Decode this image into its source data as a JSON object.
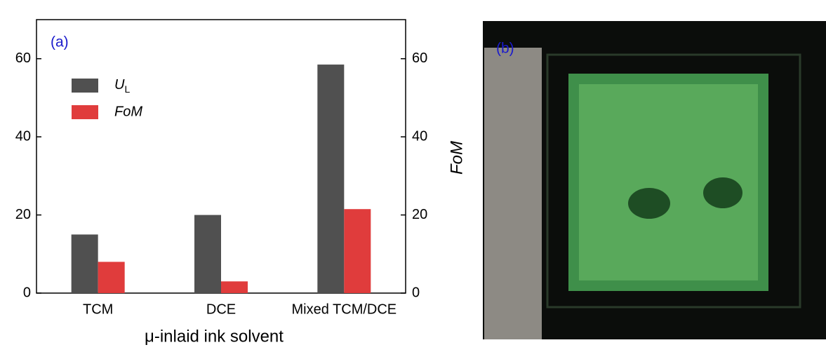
{
  "chart_data": {
    "type": "bar",
    "panel_label": "(a)",
    "x_label": "μ-inlaid ink solvent",
    "y2_label": "FoM",
    "categories": [
      "TCM",
      "DCE",
      "Mixed TCM/DCE"
    ],
    "series": [
      {
        "name": "UL",
        "color": "#505050",
        "values": [
          15,
          20,
          58.5
        ]
      },
      {
        "name": "FoM",
        "color": "#e03c3c",
        "values": [
          8,
          3,
          21.5
        ],
        "axis": "y2"
      }
    ],
    "ylim": [
      0,
      70
    ],
    "yticks": [
      0,
      20,
      40,
      60
    ],
    "y2lim": [
      0,
      70
    ],
    "y2ticks": [
      0,
      20,
      40,
      60
    ],
    "grid": false
  },
  "image": {
    "panel_label": "(b)"
  }
}
